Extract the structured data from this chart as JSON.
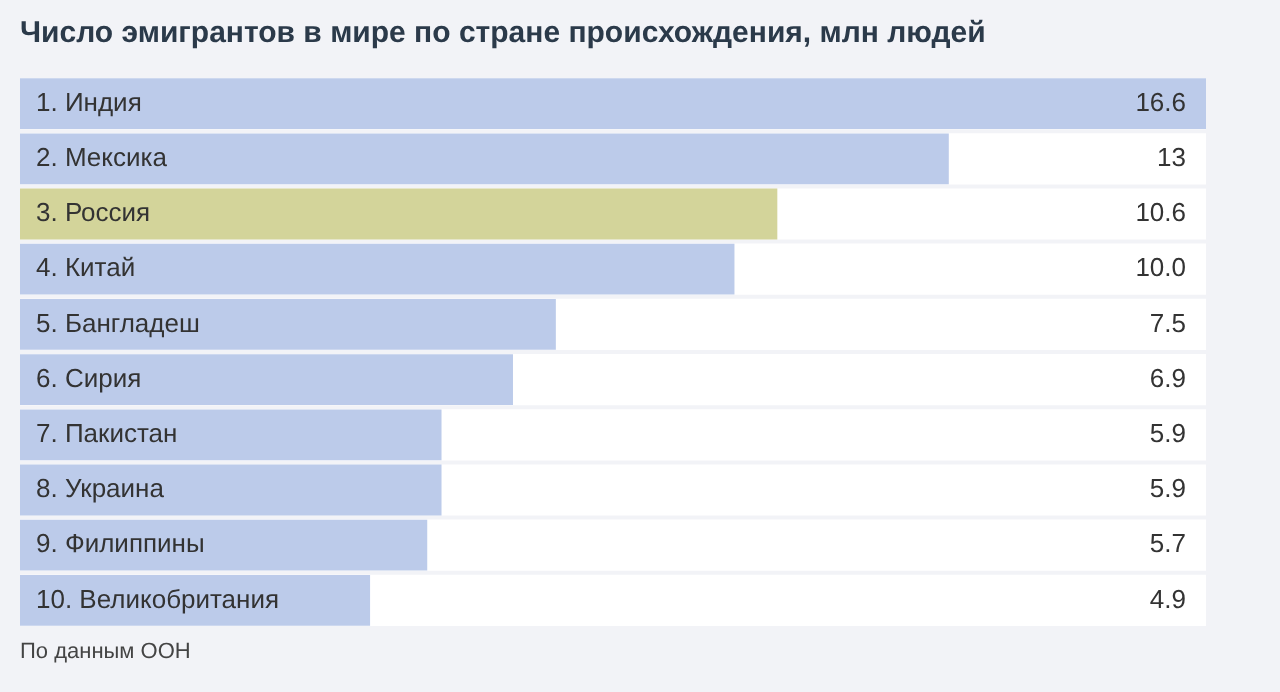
{
  "chart_data": {
    "type": "bar",
    "orientation": "horizontal",
    "relative": false,
    "title": "Число эмигрантов в мире по стране происхождения, млн людей",
    "categories": [
      "1. Индия",
      "2. Мексика",
      "3. Россия",
      "4. Китай",
      "5. Бангладеш",
      "6. Сирия",
      "7. Пакистан",
      "8. Украина",
      "9. Филиппины",
      "10. Великобритания"
    ],
    "values": [
      16.6,
      13,
      10.6,
      10.0,
      7.5,
      6.9,
      5.9,
      5.9,
      5.7,
      4.9
    ],
    "value_labels": [
      "16.6",
      "13",
      "10.6",
      "10.0",
      "7.5",
      "6.9",
      "5.9",
      "5.9",
      "5.7",
      "4.9"
    ],
    "colors": [
      "#bccbea",
      "#bccbea",
      "#d3d49a",
      "#bccbea",
      "#bccbea",
      "#bccbea",
      "#bccbea",
      "#bccbea",
      "#bccbea",
      "#bccbea"
    ],
    "grid": false,
    "legend": false,
    "annotations": [
      "По данным ООН"
    ]
  }
}
